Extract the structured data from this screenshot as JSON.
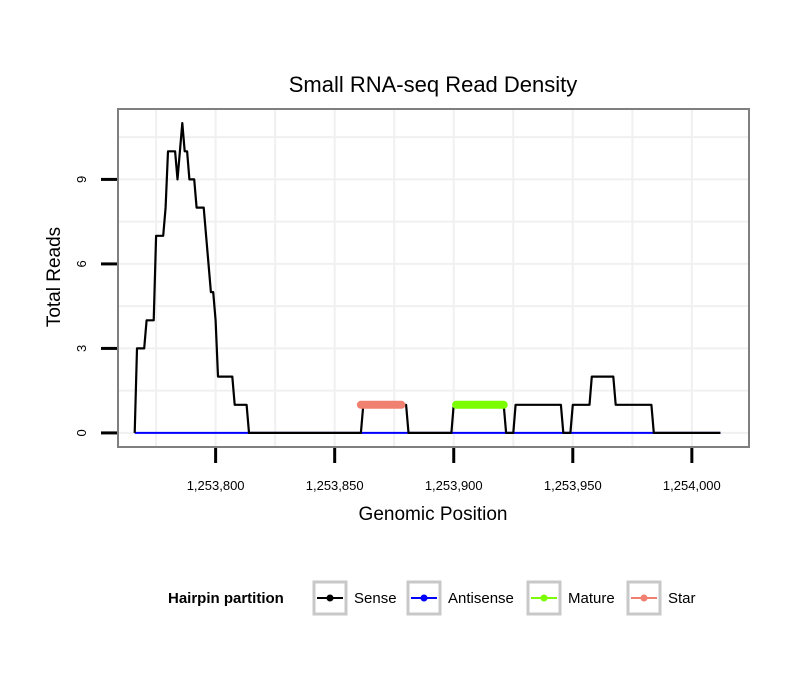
{
  "chart_data": {
    "type": "line",
    "title": "Small RNA-seq Read Density",
    "xlabel": "Genomic Position",
    "ylabel": "Total Reads",
    "xlim": [
      1253759,
      1254024
    ],
    "ylim": [
      -0.5,
      11.5
    ],
    "x_ticks": [
      1253800,
      1253850,
      1253900,
      1253950,
      1254000
    ],
    "x_tick_labels": [
      "1,253,800",
      "1,253,850",
      "1,253,900",
      "1,253,950",
      "1,254,000"
    ],
    "y_ticks": [
      0,
      3,
      6,
      9
    ],
    "y_tick_labels": [
      "0",
      "3",
      "6",
      "9"
    ],
    "grid": true,
    "legend": {
      "title": "Hairpin partition",
      "placement": "bottom",
      "entries": [
        {
          "name": "Sense",
          "color": "#000000"
        },
        {
          "name": "Antisense",
          "color": "#0000ff"
        },
        {
          "name": "Mature",
          "color": "#7cfc00"
        },
        {
          "name": "Star",
          "color": "#f08070"
        }
      ]
    },
    "series": [
      {
        "name": "Sense",
        "color": "#000000",
        "x": [
          1253766,
          1253767,
          1253770,
          1253771,
          1253774,
          1253775,
          1253776,
          1253777,
          1253778,
          1253779,
          1253780,
          1253781,
          1253782,
          1253783,
          1253784,
          1253785,
          1253786,
          1253787,
          1253788,
          1253789,
          1253790,
          1253791,
          1253792,
          1253793,
          1253794,
          1253795,
          1253796,
          1253797,
          1253798,
          1253799,
          1253800,
          1253801,
          1253802,
          1253803,
          1253804,
          1253807,
          1253808,
          1253809,
          1253813,
          1253814,
          1253861,
          1253862,
          1253880,
          1253881,
          1253899,
          1253900,
          1253921,
          1253922,
          1253925,
          1253926,
          1253945,
          1253946,
          1253949,
          1253950,
          1253957,
          1253958,
          1253967,
          1253968,
          1253983,
          1253984,
          1254012
        ],
        "values": [
          0,
          3,
          3,
          4,
          4,
          7,
          7,
          7,
          7,
          8,
          10,
          10,
          10,
          10,
          9,
          10,
          11,
          10,
          10,
          9,
          9,
          9,
          8,
          8,
          8,
          8,
          7,
          6,
          5,
          5,
          4,
          2,
          2,
          2,
          2,
          2,
          1,
          1,
          1,
          0,
          0,
          1,
          1,
          0,
          0,
          1,
          1,
          0,
          0,
          1,
          1,
          0,
          0,
          1,
          1,
          2,
          2,
          1,
          1,
          0,
          0
        ]
      },
      {
        "name": "Antisense",
        "color": "#0000ff",
        "x": [
          1253766,
          1254012
        ],
        "values": [
          0,
          0
        ]
      },
      {
        "name": "Mature",
        "color": "#7cfc00",
        "x": [
          1253901,
          1253921
        ],
        "values": [
          1,
          1
        ]
      },
      {
        "name": "Star",
        "color": "#f08070",
        "x": [
          1253861,
          1253878
        ],
        "values": [
          1,
          1
        ]
      }
    ]
  }
}
